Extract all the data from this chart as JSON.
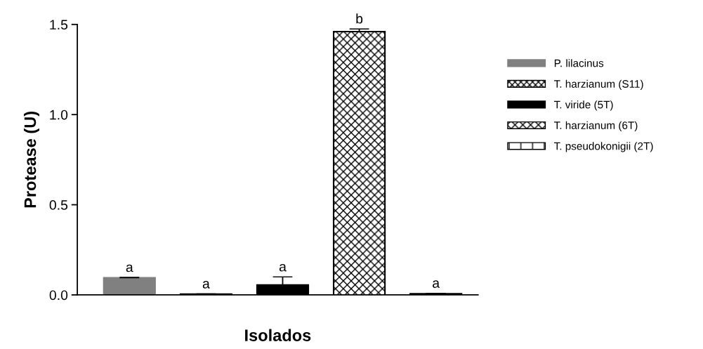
{
  "chart_data": {
    "type": "bar",
    "xlabel": "Isolados",
    "ylabel": "Protease (U)",
    "categories": [
      null,
      null,
      null,
      null,
      null
    ],
    "series": [
      {
        "name": "P. lilacinus",
        "color": "#808080",
        "values": [
          0.095,
          null,
          null,
          null,
          null
        ],
        "errors": [
          0.002,
          null,
          null,
          null,
          null
        ],
        "value_labels": [
          "a",
          null,
          null,
          null,
          null
        ]
      },
      {
        "name": "T. harzianum (S11)",
        "color": "#000000",
        "values": [
          null,
          0.005,
          null,
          null,
          null
        ],
        "errors": [
          null,
          0.001,
          null,
          null,
          null
        ],
        "value_labels": [
          null,
          "a",
          null,
          null,
          null
        ]
      },
      {
        "name": "T. viride (5T)",
        "color": "#000000",
        "values": [
          null,
          null,
          0.055,
          null,
          null
        ],
        "errors": [
          null,
          null,
          0.045,
          null,
          null
        ],
        "value_labels": [
          null,
          null,
          "a",
          null,
          null
        ]
      },
      {
        "name": "T. harzianum (6T)",
        "color": "#000000",
        "values": [
          null,
          null,
          null,
          1.46,
          null
        ],
        "errors": [
          null,
          null,
          null,
          0.015,
          null
        ],
        "value_labels": [
          null,
          null,
          null,
          "b",
          null
        ]
      },
      {
        "name": "T. pseudokonigii (2T)",
        "color": "#000000",
        "values": [
          null,
          null,
          null,
          null,
          0.007
        ],
        "errors": [
          null,
          null,
          null,
          null,
          0.002
        ],
        "value_labels": [
          null,
          null,
          null,
          null,
          "a"
        ]
      }
    ],
    "ylim": [
      0,
      1.5
    ],
    "yticks": [
      {
        "value": 0,
        "label": "0.0"
      },
      {
        "value": 0.5,
        "label": "0.5"
      },
      {
        "value": 1.0,
        "label": "1.0"
      },
      {
        "value": 1.5,
        "label": "1.5"
      }
    ],
    "grid": false,
    "legend": "right",
    "tick_labels": "y"
  }
}
